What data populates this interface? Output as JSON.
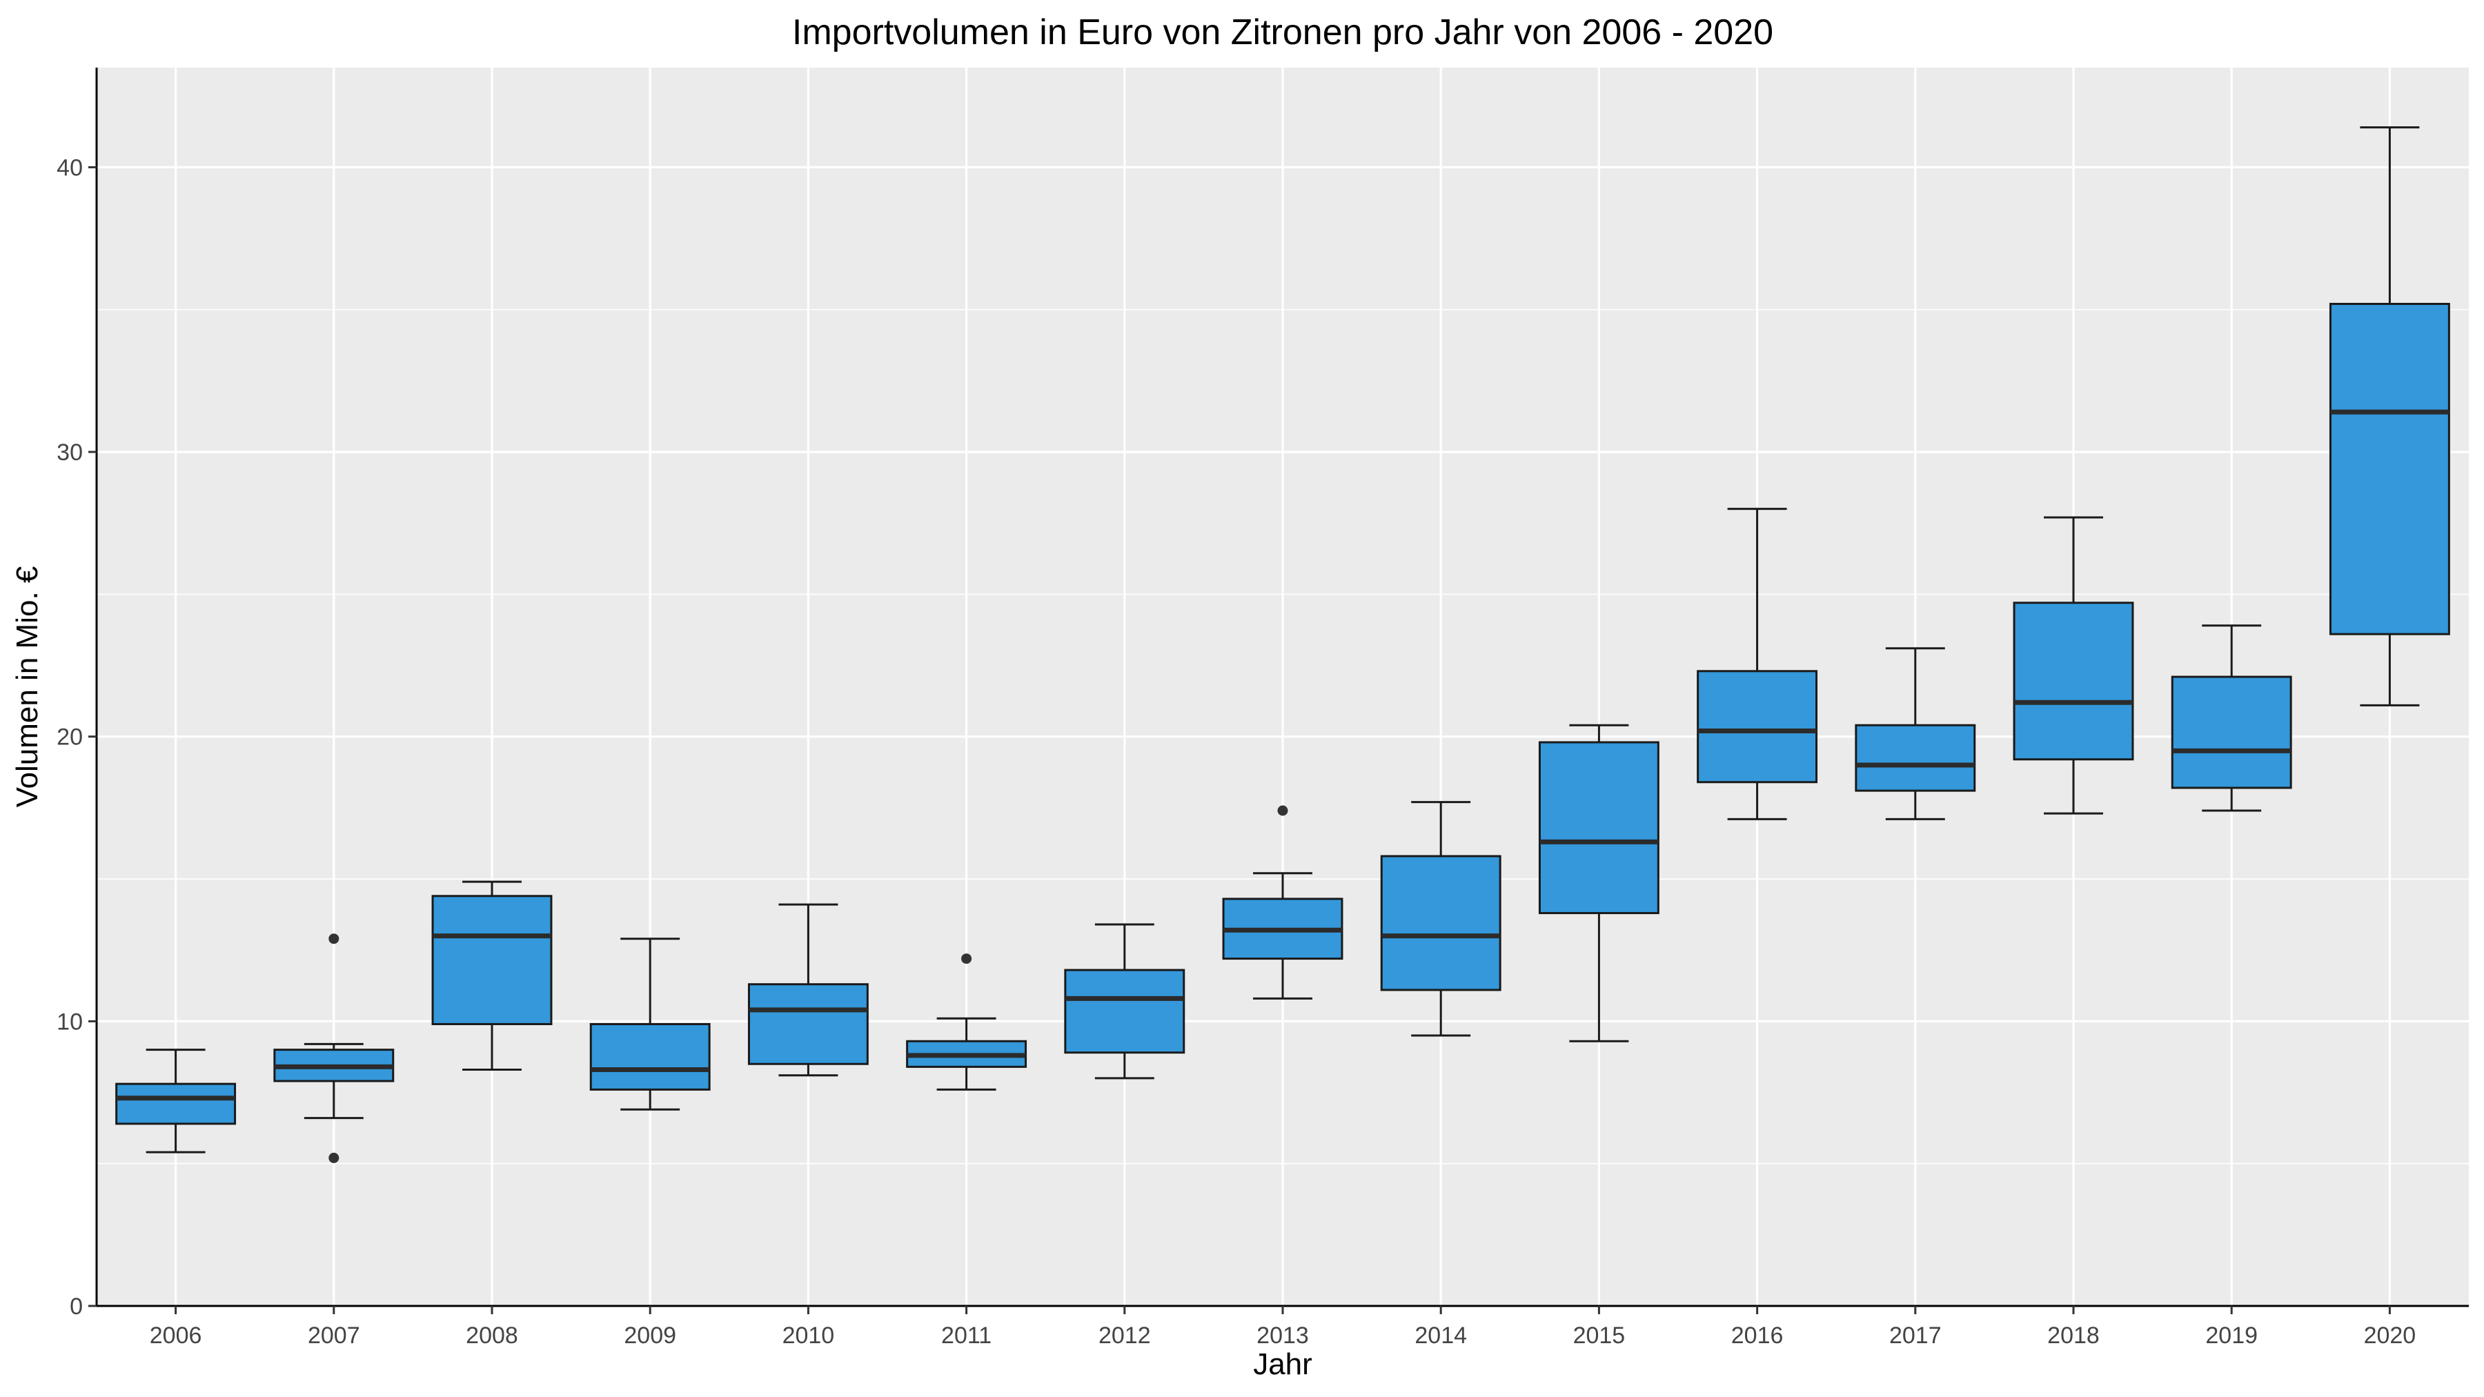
{
  "chart_data": {
    "type": "boxplot",
    "title": "Importvolumen in Euro von Zitronen pro Jahr von 2006 - 2020",
    "xlabel": "Jahr",
    "ylabel": "Volumen in Mio. €",
    "ylim": [
      0,
      43.5
    ],
    "yticks": [
      0,
      10,
      20,
      30,
      40
    ],
    "grid": true,
    "legend": "none",
    "box_color": "#3498DB",
    "panel_color": "#EBEBEB",
    "categories": [
      "2006",
      "2007",
      "2008",
      "2009",
      "2010",
      "2011",
      "2012",
      "2013",
      "2014",
      "2015",
      "2016",
      "2017",
      "2018",
      "2019",
      "2020"
    ],
    "boxes": [
      {
        "category": "2006",
        "whisker_low": 5.4,
        "q1": 6.4,
        "median": 7.3,
        "q3": 7.8,
        "whisker_high": 9.0,
        "outliers": []
      },
      {
        "category": "2007",
        "whisker_low": 6.6,
        "q1": 7.9,
        "median": 8.4,
        "q3": 9.0,
        "whisker_high": 9.2,
        "outliers": [
          12.9,
          5.2
        ]
      },
      {
        "category": "2008",
        "whisker_low": 8.3,
        "q1": 9.9,
        "median": 13.0,
        "q3": 14.4,
        "whisker_high": 14.9,
        "outliers": []
      },
      {
        "category": "2009",
        "whisker_low": 6.9,
        "q1": 7.6,
        "median": 8.3,
        "q3": 9.9,
        "whisker_high": 12.9,
        "outliers": []
      },
      {
        "category": "2010",
        "whisker_low": 8.1,
        "q1": 8.5,
        "median": 10.4,
        "q3": 11.3,
        "whisker_high": 14.1,
        "outliers": []
      },
      {
        "category": "2011",
        "whisker_low": 7.6,
        "q1": 8.4,
        "median": 8.8,
        "q3": 9.3,
        "whisker_high": 10.1,
        "outliers": [
          12.2
        ]
      },
      {
        "category": "2012",
        "whisker_low": 8.0,
        "q1": 8.9,
        "median": 10.8,
        "q3": 11.8,
        "whisker_high": 13.4,
        "outliers": []
      },
      {
        "category": "2013",
        "whisker_low": 10.8,
        "q1": 12.2,
        "median": 13.2,
        "q3": 14.3,
        "whisker_high": 15.2,
        "outliers": [
          17.4
        ]
      },
      {
        "category": "2014",
        "whisker_low": 9.5,
        "q1": 11.1,
        "median": 13.0,
        "q3": 15.8,
        "whisker_high": 17.7,
        "outliers": []
      },
      {
        "category": "2015",
        "whisker_low": 9.3,
        "q1": 13.8,
        "median": 16.3,
        "q3": 19.8,
        "whisker_high": 20.4,
        "outliers": []
      },
      {
        "category": "2016",
        "whisker_low": 17.1,
        "q1": 18.4,
        "median": 20.2,
        "q3": 22.3,
        "whisker_high": 28.0,
        "outliers": []
      },
      {
        "category": "2017",
        "whisker_low": 17.1,
        "q1": 18.1,
        "median": 19.0,
        "q3": 20.4,
        "whisker_high": 23.1,
        "outliers": []
      },
      {
        "category": "2018",
        "whisker_low": 17.3,
        "q1": 19.2,
        "median": 21.2,
        "q3": 24.7,
        "whisker_high": 27.7,
        "outliers": []
      },
      {
        "category": "2019",
        "whisker_low": 17.4,
        "q1": 18.2,
        "median": 19.5,
        "q3": 22.1,
        "whisker_high": 23.9,
        "outliers": []
      },
      {
        "category": "2020",
        "whisker_low": 21.1,
        "q1": 23.6,
        "median": 31.4,
        "q3": 35.2,
        "whisker_high": 41.4,
        "outliers": []
      }
    ]
  }
}
